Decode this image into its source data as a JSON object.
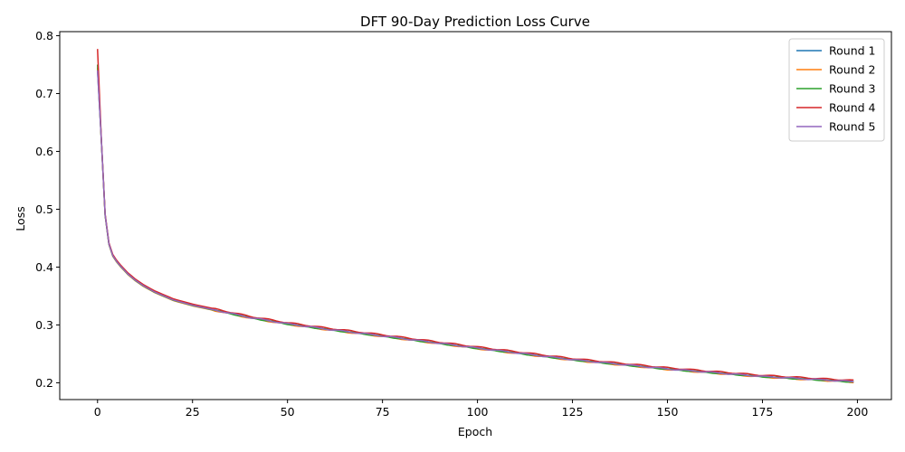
{
  "chart_data": {
    "type": "line",
    "title": "DFT 90-Day Prediction Loss Curve",
    "xlabel": "Epoch",
    "ylabel": "Loss",
    "xlim": [
      -9.95,
      208.95
    ],
    "ylim": [
      0.171,
      0.807
    ],
    "xticks": [
      0,
      25,
      50,
      75,
      100,
      125,
      150,
      175,
      200
    ],
    "yticks": [
      0.2,
      0.3,
      0.4,
      0.5,
      0.6,
      0.7,
      0.8
    ],
    "grid": false,
    "legend_position": "top-right",
    "x_start": 0,
    "x_end": 199,
    "base_curve": {
      "x": [
        0,
        1,
        2,
        3,
        4,
        5,
        6,
        7,
        8,
        10,
        12,
        15,
        20,
        25,
        30,
        40,
        50,
        60,
        75,
        100,
        125,
        150,
        175,
        199
      ],
      "y": [
        0.775,
        0.62,
        0.49,
        0.44,
        0.42,
        0.41,
        0.402,
        0.395,
        0.388,
        0.377,
        0.368,
        0.357,
        0.343,
        0.334,
        0.327,
        0.313,
        0.302,
        0.293,
        0.281,
        0.26,
        0.24,
        0.224,
        0.211,
        0.202
      ]
    },
    "series": [
      {
        "name": "Round 1",
        "color": "#1f77b4",
        "start_value": 0.74,
        "offset": 0.0
      },
      {
        "name": "Round 2",
        "color": "#ff7f0e",
        "start_value": 0.745,
        "offset": -0.001
      },
      {
        "name": "Round 3",
        "color": "#2ca02c",
        "start_value": 0.75,
        "offset": -0.0005
      },
      {
        "name": "Round 4",
        "color": "#d62728",
        "start_value": 0.777,
        "offset": 0.002
      },
      {
        "name": "Round 5",
        "color": "#9467bd",
        "start_value": 0.74,
        "offset": 0.0
      }
    ]
  }
}
